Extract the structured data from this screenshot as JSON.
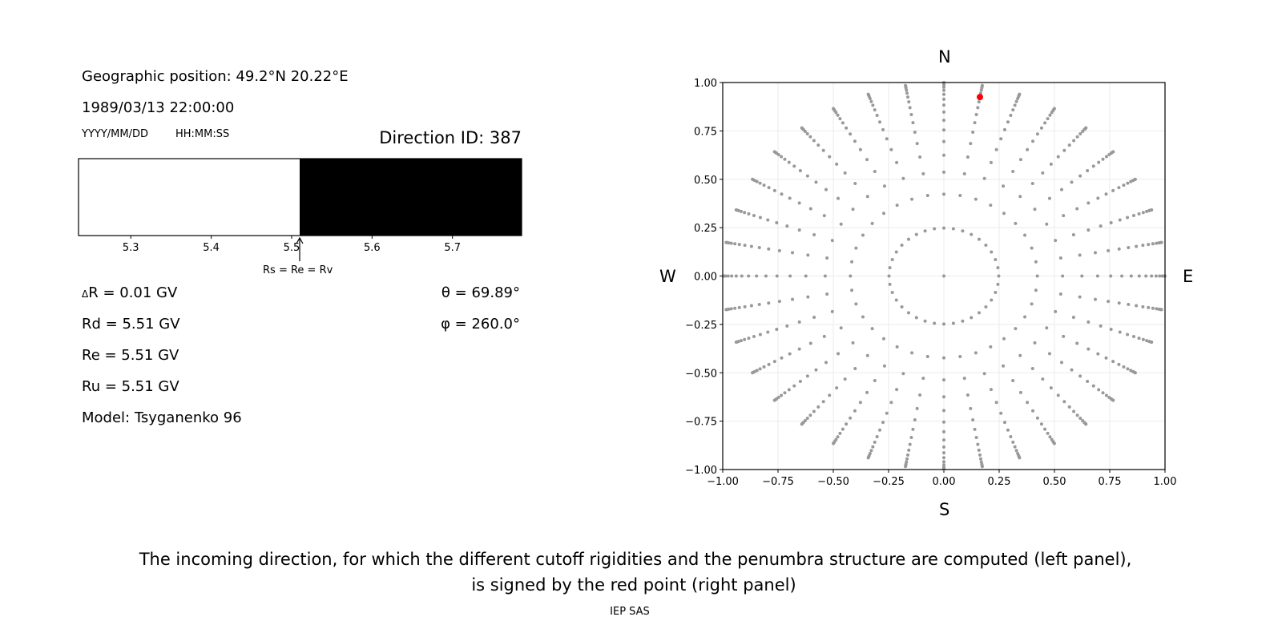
{
  "left_panel": {
    "geo_position": "Geographic position: 49.2°N 20.22°E",
    "datetime": "1989/03/13 22:00:00",
    "date_format": "YYYY/MM/DD",
    "time_format": "HH:MM:SS",
    "direction_id": "Direction ID: 387",
    "delta_r_symbol": "Δ",
    "delta_r": "R = 0.01 GV",
    "rd": "Rd = 5.51 GV",
    "re": "Re = 5.51 GV",
    "ru": "Ru = 5.51 GV",
    "model": "Model: Tsyganenko 96",
    "theta": "θ = 69.89°",
    "phi": "φ = 260.0°",
    "annotation": "Rs = Re = Rv"
  },
  "caption": {
    "line1": "The incoming direction, for which the different cutoff rigidities and the penumbra structure are computed (left panel),",
    "line2": "is signed by the red point (right panel)"
  },
  "footer": "IEP SAS",
  "chart_data": [
    {
      "type": "bar",
      "description_kind": "penumbra strip",
      "xlim": [
        5.235,
        5.786
      ],
      "xticks": [
        5.3,
        5.4,
        5.5,
        5.6,
        5.7
      ],
      "xtick_labels": [
        "5.3",
        "5.4",
        "5.5",
        "5.6",
        "5.7"
      ],
      "segments": [
        {
          "from": 5.235,
          "to": 5.51,
          "color": "#ffffff"
        },
        {
          "from": 5.51,
          "to": 5.786,
          "color": "#000000"
        }
      ],
      "annotation": {
        "x": 5.51,
        "text_key": "left_panel.annotation"
      }
    },
    {
      "type": "scatter",
      "xlim": [
        -1,
        1
      ],
      "ylim": [
        -1,
        1
      ],
      "grid": true,
      "ticks": [
        -1,
        -0.75,
        -0.5,
        -0.25,
        0,
        0.25,
        0.5,
        0.75,
        1
      ],
      "tick_labels": [
        "−1.00",
        "−0.75",
        "−0.50",
        "−0.25",
        "0.00",
        "0.25",
        "0.50",
        "0.75",
        "1.00"
      ],
      "compass": {
        "top": "N",
        "bottom": "S",
        "left": "W",
        "right": "E"
      },
      "point_color": "#999999",
      "highlight_color": "#ff0000",
      "center_point": [
        0,
        0
      ],
      "azimuth_step_deg": 10,
      "ring_cos_values": [
        0.96875,
        0.90625,
        0.84375,
        0.78125,
        0.71875,
        0.65625,
        0.59375,
        0.53125,
        0.46875,
        0.40625,
        0.34375,
        0.28125,
        0.21875,
        0.15625,
        0.09375,
        0.03125
      ],
      "highlight_point": {
        "x": 0.163,
        "y": 0.925
      }
    }
  ]
}
